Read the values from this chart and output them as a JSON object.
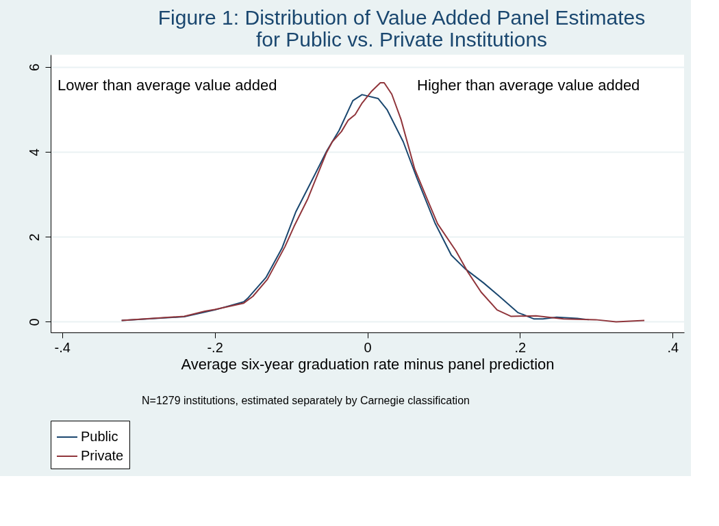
{
  "chart_data": {
    "type": "line",
    "title": [
      "Figure 1: Distribution of Value Added Panel Estimates",
      "for Public vs. Private Institutions"
    ],
    "xlabel": "Average six-year graduation rate minus panel prediction",
    "annotations": [
      "Lower than average value added",
      "Higher than average value added",
      "N=1279 institutions, estimated separately by Carnegie classification"
    ],
    "series": [
      {
        "name": "Public",
        "color": "#1a476f",
        "x": [
          -0.322,
          -0.24,
          -0.2,
          -0.162,
          -0.157,
          -0.133,
          -0.112,
          -0.094,
          -0.071,
          -0.053,
          -0.037,
          -0.019,
          -0.007,
          0.014,
          0.026,
          0.047,
          0.065,
          0.089,
          0.11,
          0.128,
          0.152,
          0.173,
          0.197,
          0.218,
          0.23,
          0.248,
          0.275,
          0.29
        ],
        "values": [
          0.03,
          0.12,
          0.28,
          0.47,
          0.55,
          1.04,
          1.73,
          2.58,
          3.39,
          4.03,
          4.51,
          5.21,
          5.35,
          5.26,
          4.99,
          4.24,
          3.38,
          2.31,
          1.57,
          1.25,
          0.92,
          0.6,
          0.22,
          0.07,
          0.07,
          0.11,
          0.08,
          0.05
        ]
      },
      {
        "name": "Private",
        "color": "#90353b",
        "x": [
          -0.322,
          -0.24,
          -0.213,
          -0.2,
          -0.162,
          -0.15,
          -0.131,
          -0.108,
          -0.096,
          -0.078,
          -0.054,
          -0.046,
          -0.034,
          -0.025,
          -0.016,
          -0.007,
          0.005,
          0.017,
          0.022,
          0.032,
          0.044,
          0.062,
          0.077,
          0.092,
          0.116,
          0.131,
          0.149,
          0.17,
          0.188,
          0.221,
          0.257,
          0.299,
          0.326,
          0.363
        ],
        "values": [
          0.03,
          0.13,
          0.25,
          0.29,
          0.44,
          0.6,
          1.0,
          1.77,
          2.25,
          2.9,
          3.97,
          4.24,
          4.48,
          4.75,
          4.88,
          5.15,
          5.42,
          5.63,
          5.63,
          5.36,
          4.77,
          3.6,
          2.95,
          2.31,
          1.67,
          1.19,
          0.7,
          0.28,
          0.13,
          0.14,
          0.07,
          0.05,
          0.0,
          0.03
        ]
      }
    ],
    "xlim": [
      -0.415,
      0.415
    ],
    "xticks": [
      {
        "value": -0.4,
        "label": "-.4"
      },
      {
        "value": -0.2,
        "label": "-.2"
      },
      0,
      {
        "value": 0.2,
        "label": ".2"
      },
      {
        "value": 0.4,
        "label": ".4"
      }
    ],
    "ylim": [
      -0.25,
      6.29
    ],
    "yticks": [
      0,
      2,
      4,
      6
    ],
    "grid": "y",
    "legend": "bottom",
    "marker": "none",
    "line_style": "solid"
  }
}
